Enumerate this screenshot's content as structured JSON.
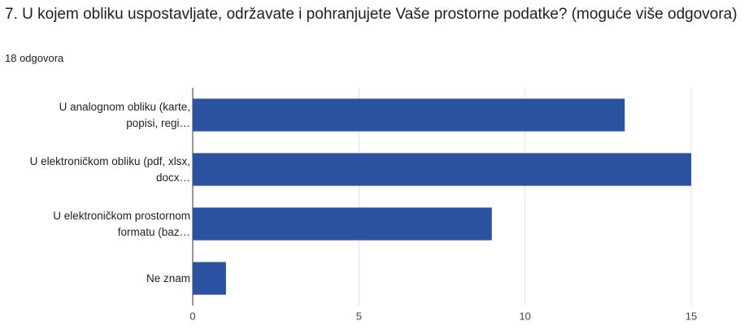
{
  "chart_data": {
    "type": "bar",
    "orientation": "horizontal",
    "title": "7. U kojem obliku uspostavljate, održavate i pohranjujete Vaše prostorne podatke? (moguće više odgovora)",
    "subtitle": "18 odgovora",
    "categories": [
      "U analognom obliku (karte,\npopisi, regi…",
      "U elektroničkom obliku (pdf, xlsx,\ndocx…",
      "U elektroničkom prostornom\nformatu (baz…",
      "Ne znam"
    ],
    "values": [
      13,
      15,
      9,
      1
    ],
    "color": "#2a52a0",
    "xlim": [
      0,
      15
    ],
    "xticks": [
      0,
      5,
      10,
      15
    ],
    "grid": true
  }
}
